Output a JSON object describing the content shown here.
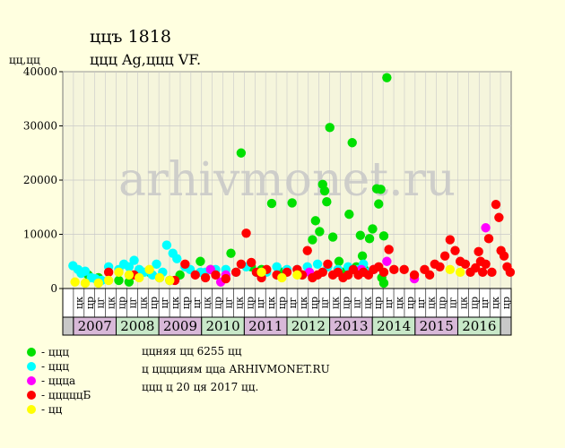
{
  "header": {
    "title": "ццъ 1818",
    "subtitle": "ццц Ag,ццц VF.",
    "unit": "цц,цц"
  },
  "colors": {
    "background": "#ffffe0",
    "plot_bg": "#f5f5dc",
    "grid": "#c8c8c8",
    "year_row": "#c8c8c8",
    "year_even": "#d8b8d8",
    "year_odd": "#c8e8c8",
    "watermark": "#c8c8c8"
  },
  "watermark": "arhivmonet.ru",
  "legend": [
    {
      "label": "- ццц",
      "color": "#00e000"
    },
    {
      "label": "- ццц",
      "color": "#00ffff"
    },
    {
      "label": "- ццца",
      "color": "#ff00ff"
    },
    {
      "label": "- цццццБ",
      "color": "#ff0000"
    },
    {
      "label": "- цц",
      "color": "#ffff00"
    }
  ],
  "notes": [
    "ццняя цц 6255 цц",
    "ц цццциям цца ARHIVMONET.RU",
    "ццц ц 20 ця 2017 цц."
  ],
  "chart_data": {
    "type": "scatter",
    "ylim": [
      0,
      40000
    ],
    "yticks": [
      0,
      10000,
      20000,
      30000,
      40000
    ],
    "ytick_labels": [
      "0",
      "10000",
      "20000",
      "30000",
      "40000"
    ],
    "quarters": [
      "цк",
      "цр",
      "цг",
      "цк",
      "цр",
      "цг",
      "цк",
      "цр",
      "цг",
      "цк",
      "цр",
      "цг",
      "цк",
      "цр",
      "цг",
      "цк",
      "цр",
      "цг",
      "цк",
      "цр",
      "цг",
      "цк",
      "цр",
      "цг",
      "цк",
      "цр",
      "цг",
      "цк",
      "цр",
      "цг",
      "цк",
      "цр",
      "цг",
      "цк",
      "цр",
      "цг",
      "цк",
      "цр",
      "цг",
      "цк",
      "цр"
    ],
    "years": [
      {
        "label": "",
        "start": 0,
        "span": 1
      },
      {
        "label": "2007",
        "start": 1,
        "span": 4
      },
      {
        "label": "2008",
        "start": 5,
        "span": 4
      },
      {
        "label": "2009",
        "start": 9,
        "span": 4
      },
      {
        "label": "2010",
        "start": 13,
        "span": 4
      },
      {
        "label": "2011",
        "start": 17,
        "span": 4
      },
      {
        "label": "2012",
        "start": 21,
        "span": 4
      },
      {
        "label": "2013",
        "start": 25,
        "span": 4
      },
      {
        "label": "2014",
        "start": 29,
        "span": 4
      },
      {
        "label": "2015",
        "start": 33,
        "span": 4
      },
      {
        "label": "2016",
        "start": 37,
        "span": 4
      },
      {
        "label": "",
        "start": 41,
        "span": 1
      }
    ],
    "series": [
      {
        "name": "ццц",
        "color": "#00e000",
        "points": [
          [
            2.5,
            2500
          ],
          [
            3.5,
            2000
          ],
          [
            5.5,
            1500
          ],
          [
            6.5,
            1200
          ],
          [
            8.5,
            3000
          ],
          [
            9.5,
            2000
          ],
          [
            10.5,
            1500
          ],
          [
            11.5,
            2500
          ],
          [
            13.5,
            5000
          ],
          [
            14.5,
            3500
          ],
          [
            16.5,
            6500
          ],
          [
            17.5,
            25000
          ],
          [
            18.5,
            4000
          ],
          [
            19.5,
            3500
          ],
          [
            20.5,
            15700
          ],
          [
            21.5,
            3000
          ],
          [
            22.5,
            15800
          ],
          [
            23.5,
            2500
          ],
          [
            24.5,
            9000
          ],
          [
            24.8,
            12500
          ],
          [
            25.2,
            10500
          ],
          [
            25.5,
            19200
          ],
          [
            25.7,
            18000
          ],
          [
            25.9,
            16000
          ],
          [
            26.2,
            29700
          ],
          [
            26.5,
            9500
          ],
          [
            27.1,
            5000
          ],
          [
            27.5,
            3000
          ],
          [
            28.1,
            13700
          ],
          [
            28.4,
            26900
          ],
          [
            28.8,
            4000
          ],
          [
            29.2,
            9800
          ],
          [
            29.4,
            6000
          ],
          [
            29.6,
            3500
          ],
          [
            30.1,
            9200
          ],
          [
            30.4,
            11000
          ],
          [
            30.8,
            18400
          ],
          [
            31.0,
            15600
          ],
          [
            31.2,
            18300
          ],
          [
            31.5,
            9700
          ],
          [
            31.3,
            2000
          ],
          [
            31.5,
            1000
          ],
          [
            31.8,
            38900
          ]
        ]
      },
      {
        "name": "ццц",
        "color": "#00ffff",
        "points": [
          [
            1.0,
            4200
          ],
          [
            1.5,
            3500
          ],
          [
            1.8,
            2800
          ],
          [
            2.2,
            3200
          ],
          [
            2.8,
            2000
          ],
          [
            3.2,
            1800
          ],
          [
            3.8,
            1500
          ],
          [
            4.5,
            4000
          ],
          [
            5.5,
            3500
          ],
          [
            6.0,
            4500
          ],
          [
            6.5,
            4000
          ],
          [
            7.0,
            5200
          ],
          [
            7.5,
            3500
          ],
          [
            8.0,
            3000
          ],
          [
            8.8,
            2500
          ],
          [
            9.2,
            4500
          ],
          [
            9.8,
            3000
          ],
          [
            10.2,
            8000
          ],
          [
            10.8,
            6500
          ],
          [
            11.2,
            5500
          ],
          [
            12.0,
            4000
          ],
          [
            12.5,
            3500
          ],
          [
            13.5,
            3000
          ],
          [
            14.0,
            3000
          ],
          [
            15.0,
            3500
          ],
          [
            16.0,
            3500
          ],
          [
            17.0,
            3000
          ],
          [
            18.0,
            4000
          ],
          [
            19.0,
            3000
          ],
          [
            20.0,
            3000
          ],
          [
            21.0,
            4000
          ],
          [
            22.0,
            3500
          ],
          [
            23.0,
            3500
          ],
          [
            24.0,
            4000
          ],
          [
            25.0,
            4500
          ],
          [
            26.0,
            4000
          ],
          [
            27.0,
            3500
          ],
          [
            28.0,
            4000
          ],
          [
            29.0,
            3500
          ],
          [
            29.5,
            4500
          ],
          [
            30.0,
            3000
          ]
        ]
      },
      {
        "name": "ццца",
        "color": "#ff00ff",
        "points": [
          [
            14.5,
            3500
          ],
          [
            15.5,
            1200
          ],
          [
            16.0,
            2500
          ],
          [
            24.2,
            3000
          ],
          [
            29.3,
            3500
          ],
          [
            30.5,
            3500
          ],
          [
            31.8,
            5000
          ],
          [
            34.5,
            1800
          ],
          [
            41.5,
            11200
          ]
        ]
      },
      {
        "name": "цццццБ",
        "color": "#ff0000",
        "points": [
          [
            4.5,
            3000
          ],
          [
            7.0,
            2500
          ],
          [
            11.0,
            1500
          ],
          [
            12.0,
            4500
          ],
          [
            13.0,
            2500
          ],
          [
            14.0,
            2000
          ],
          [
            15.0,
            2500
          ],
          [
            16.0,
            1800
          ],
          [
            17.0,
            3000
          ],
          [
            17.5,
            4500
          ],
          [
            18.0,
            10200
          ],
          [
            18.5,
            4800
          ],
          [
            19.0,
            3000
          ],
          [
            19.5,
            2000
          ],
          [
            20.0,
            3500
          ],
          [
            21.0,
            2500
          ],
          [
            22.0,
            3000
          ],
          [
            23.0,
            3500
          ],
          [
            23.5,
            2500
          ],
          [
            24.0,
            7000
          ],
          [
            24.5,
            2000
          ],
          [
            25.0,
            2500
          ],
          [
            25.5,
            3000
          ],
          [
            26.0,
            4500
          ],
          [
            26.5,
            2500
          ],
          [
            27.0,
            3000
          ],
          [
            27.5,
            2000
          ],
          [
            28.0,
            2500
          ],
          [
            28.5,
            3500
          ],
          [
            29.0,
            2500
          ],
          [
            29.5,
            3000
          ],
          [
            30.0,
            2500
          ],
          [
            30.5,
            3500
          ],
          [
            31.0,
            4000
          ],
          [
            31.5,
            3000
          ],
          [
            32.0,
            7200
          ],
          [
            32.5,
            3500
          ],
          [
            33.5,
            3500
          ],
          [
            34.5,
            2500
          ],
          [
            35.5,
            3500
          ],
          [
            36.0,
            2500
          ],
          [
            36.5,
            4500
          ],
          [
            37.0,
            4000
          ],
          [
            37.5,
            6000
          ],
          [
            38.0,
            9000
          ],
          [
            38.5,
            7000
          ],
          [
            39.0,
            5000
          ],
          [
            39.5,
            4500
          ],
          [
            40.0,
            3000
          ],
          [
            40.5,
            3800
          ],
          [
            40.8,
            6800
          ],
          [
            41.0,
            5000
          ],
          [
            41.5,
            4500
          ],
          [
            41.2,
            3000
          ],
          [
            41.8,
            9200
          ],
          [
            42.1,
            3000
          ],
          [
            42.5,
            15500
          ],
          [
            42.8,
            13100
          ],
          [
            43.0,
            7000
          ],
          [
            43.3,
            6000
          ],
          [
            43.6,
            4000
          ],
          [
            43.9,
            3000
          ]
        ]
      },
      {
        "name": "цц",
        "color": "#ffff00",
        "points": [
          [
            1.2,
            1200
          ],
          [
            2.2,
            1000
          ],
          [
            3.5,
            1000
          ],
          [
            4.5,
            1500
          ],
          [
            5.5,
            3000
          ],
          [
            6.5,
            2500
          ],
          [
            7.5,
            2000
          ],
          [
            8.5,
            3500
          ],
          [
            9.5,
            2000
          ],
          [
            10.5,
            1500
          ],
          [
            19.5,
            3000
          ],
          [
            21.5,
            2000
          ],
          [
            23.0,
            2500
          ],
          [
            38.0,
            3500
          ],
          [
            39.0,
            3000
          ]
        ]
      }
    ]
  }
}
